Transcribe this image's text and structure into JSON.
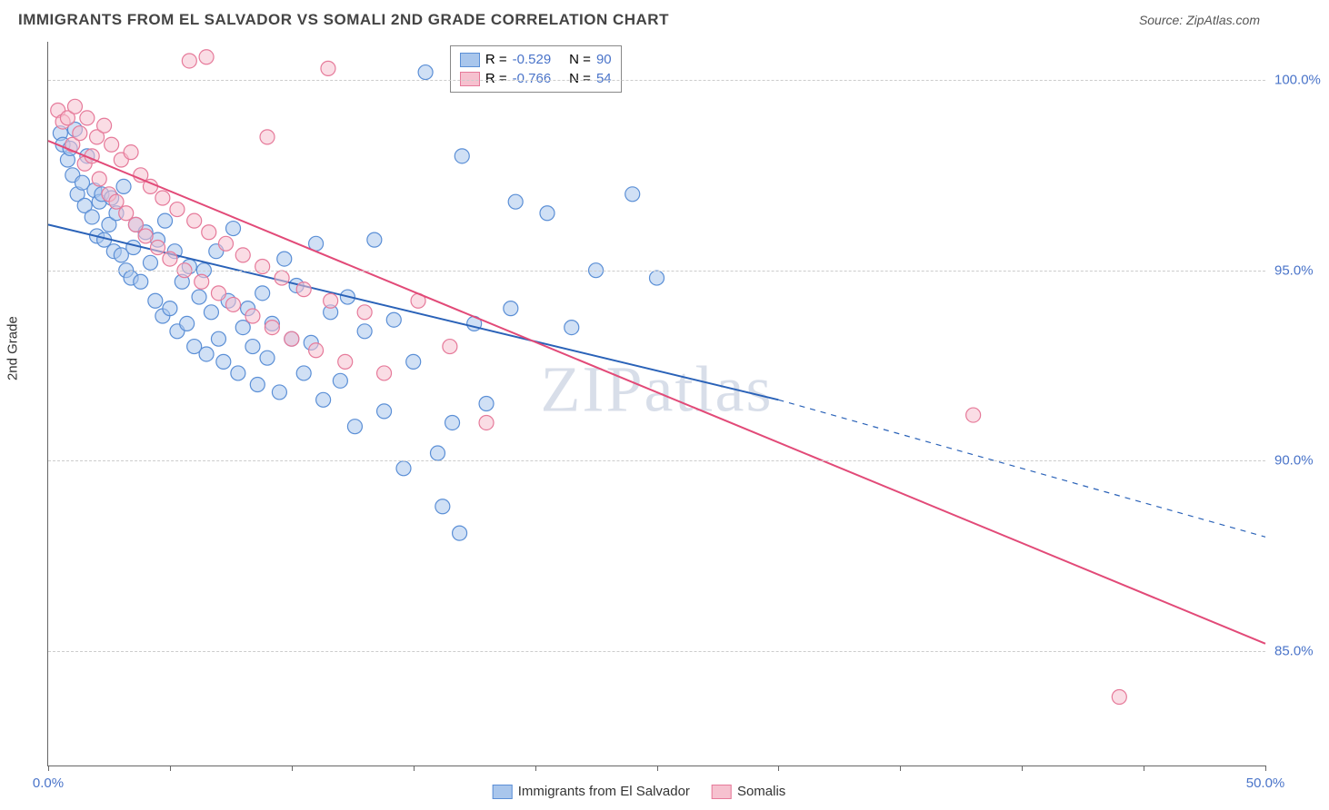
{
  "title": "IMMIGRANTS FROM EL SALVADOR VS SOMALI 2ND GRADE CORRELATION CHART",
  "source_label": "Source: ",
  "source_value": "ZipAtlas.com",
  "y_axis_label": "2nd Grade",
  "watermark": "ZIPatlas",
  "chart": {
    "type": "scatter",
    "background_color": "#ffffff",
    "grid_color": "#cccccc",
    "axis_color": "#666666",
    "xlim": [
      0,
      50
    ],
    "ylim": [
      82,
      101
    ],
    "x_ticks": [
      0,
      5,
      10,
      15,
      20,
      25,
      30,
      35,
      40,
      45,
      50
    ],
    "x_tick_labels": {
      "0": "0.0%",
      "50": "50.0%"
    },
    "y_ticks": [
      85,
      90,
      95,
      100
    ],
    "y_tick_labels": {
      "85": "85.0%",
      "90": "90.0%",
      "95": "95.0%",
      "100": "100.0%"
    },
    "tick_label_color": "#4a74c9",
    "tick_label_fontsize": 15,
    "marker_radius": 8,
    "marker_opacity": 0.55,
    "series": [
      {
        "name": "Immigrants from El Salvador",
        "color_fill": "#a9c6ec",
        "color_stroke": "#5b8fd6",
        "R": "-0.529",
        "N": "90",
        "trend": {
          "x1": 0,
          "y1": 96.2,
          "x2": 30,
          "y2": 91.6,
          "solid_until_x": 30,
          "dash_to_x": 50,
          "dash_y2": 88.0,
          "color": "#2a62b8",
          "width": 2
        },
        "points": [
          [
            0.5,
            98.6
          ],
          [
            0.6,
            98.3
          ],
          [
            0.8,
            97.9
          ],
          [
            0.9,
            98.2
          ],
          [
            1.0,
            97.5
          ],
          [
            1.1,
            98.7
          ],
          [
            1.2,
            97.0
          ],
          [
            1.4,
            97.3
          ],
          [
            1.5,
            96.7
          ],
          [
            1.6,
            98.0
          ],
          [
            1.8,
            96.4
          ],
          [
            1.9,
            97.1
          ],
          [
            2.0,
            95.9
          ],
          [
            2.1,
            96.8
          ],
          [
            2.2,
            97.0
          ],
          [
            2.3,
            95.8
          ],
          [
            2.5,
            96.2
          ],
          [
            2.6,
            96.9
          ],
          [
            2.7,
            95.5
          ],
          [
            2.8,
            96.5
          ],
          [
            3.0,
            95.4
          ],
          [
            3.1,
            97.2
          ],
          [
            3.2,
            95.0
          ],
          [
            3.4,
            94.8
          ],
          [
            3.5,
            95.6
          ],
          [
            3.6,
            96.2
          ],
          [
            3.8,
            94.7
          ],
          [
            4.0,
            96.0
          ],
          [
            4.2,
            95.2
          ],
          [
            4.4,
            94.2
          ],
          [
            4.5,
            95.8
          ],
          [
            4.7,
            93.8
          ],
          [
            4.8,
            96.3
          ],
          [
            5.0,
            94.0
          ],
          [
            5.2,
            95.5
          ],
          [
            5.3,
            93.4
          ],
          [
            5.5,
            94.7
          ],
          [
            5.7,
            93.6
          ],
          [
            5.8,
            95.1
          ],
          [
            6.0,
            93.0
          ],
          [
            6.2,
            94.3
          ],
          [
            6.4,
            95.0
          ],
          [
            6.5,
            92.8
          ],
          [
            6.7,
            93.9
          ],
          [
            6.9,
            95.5
          ],
          [
            7.0,
            93.2
          ],
          [
            7.2,
            92.6
          ],
          [
            7.4,
            94.2
          ],
          [
            7.6,
            96.1
          ],
          [
            7.8,
            92.3
          ],
          [
            8.0,
            93.5
          ],
          [
            8.2,
            94.0
          ],
          [
            8.4,
            93.0
          ],
          [
            8.6,
            92.0
          ],
          [
            8.8,
            94.4
          ],
          [
            9.0,
            92.7
          ],
          [
            9.2,
            93.6
          ],
          [
            9.5,
            91.8
          ],
          [
            9.7,
            95.3
          ],
          [
            10.0,
            93.2
          ],
          [
            10.2,
            94.6
          ],
          [
            10.5,
            92.3
          ],
          [
            10.8,
            93.1
          ],
          [
            11.0,
            95.7
          ],
          [
            11.3,
            91.6
          ],
          [
            11.6,
            93.9
          ],
          [
            12.0,
            92.1
          ],
          [
            12.3,
            94.3
          ],
          [
            12.6,
            90.9
          ],
          [
            13.0,
            93.4
          ],
          [
            13.4,
            95.8
          ],
          [
            13.8,
            91.3
          ],
          [
            14.2,
            93.7
          ],
          [
            14.6,
            89.8
          ],
          [
            15.0,
            92.6
          ],
          [
            15.5,
            100.2
          ],
          [
            16.0,
            90.2
          ],
          [
            16.2,
            88.8
          ],
          [
            16.6,
            91.0
          ],
          [
            16.9,
            88.1
          ],
          [
            17.0,
            98.0
          ],
          [
            17.5,
            93.6
          ],
          [
            18.0,
            91.5
          ],
          [
            19.0,
            94.0
          ],
          [
            19.2,
            96.8
          ],
          [
            20.5,
            96.5
          ],
          [
            21.5,
            93.5
          ],
          [
            22.5,
            95.0
          ],
          [
            24.0,
            97.0
          ],
          [
            25.0,
            94.8
          ]
        ]
      },
      {
        "name": "Somalis",
        "color_fill": "#f6c1cf",
        "color_stroke": "#e67a9a",
        "R": "-0.766",
        "N": "54",
        "trend": {
          "x1": 0,
          "y1": 98.4,
          "x2": 50,
          "y2": 85.2,
          "color": "#e24a78",
          "width": 2
        },
        "points": [
          [
            0.4,
            99.2
          ],
          [
            0.6,
            98.9
          ],
          [
            0.8,
            99.0
          ],
          [
            1.0,
            98.3
          ],
          [
            1.1,
            99.3
          ],
          [
            1.3,
            98.6
          ],
          [
            1.5,
            97.8
          ],
          [
            1.6,
            99.0
          ],
          [
            1.8,
            98.0
          ],
          [
            2.0,
            98.5
          ],
          [
            2.1,
            97.4
          ],
          [
            2.3,
            98.8
          ],
          [
            2.5,
            97.0
          ],
          [
            2.6,
            98.3
          ],
          [
            2.8,
            96.8
          ],
          [
            3.0,
            97.9
          ],
          [
            3.2,
            96.5
          ],
          [
            3.4,
            98.1
          ],
          [
            3.6,
            96.2
          ],
          [
            3.8,
            97.5
          ],
          [
            4.0,
            95.9
          ],
          [
            4.2,
            97.2
          ],
          [
            4.5,
            95.6
          ],
          [
            4.7,
            96.9
          ],
          [
            5.0,
            95.3
          ],
          [
            5.3,
            96.6
          ],
          [
            5.6,
            95.0
          ],
          [
            5.8,
            100.5
          ],
          [
            6.0,
            96.3
          ],
          [
            6.3,
            94.7
          ],
          [
            6.6,
            96.0
          ],
          [
            6.5,
            100.6
          ],
          [
            7.0,
            94.4
          ],
          [
            7.3,
            95.7
          ],
          [
            7.6,
            94.1
          ],
          [
            8.0,
            95.4
          ],
          [
            8.4,
            93.8
          ],
          [
            8.8,
            95.1
          ],
          [
            9.0,
            98.5
          ],
          [
            9.2,
            93.5
          ],
          [
            9.6,
            94.8
          ],
          [
            10.0,
            93.2
          ],
          [
            10.5,
            94.5
          ],
          [
            11.0,
            92.9
          ],
          [
            11.5,
            100.3
          ],
          [
            11.6,
            94.2
          ],
          [
            12.2,
            92.6
          ],
          [
            13.0,
            93.9
          ],
          [
            13.8,
            92.3
          ],
          [
            15.2,
            94.2
          ],
          [
            16.5,
            93.0
          ],
          [
            18.0,
            91.0
          ],
          [
            38.0,
            91.2
          ],
          [
            44.0,
            83.8
          ]
        ]
      }
    ]
  },
  "legend_top": {
    "R_label": "R =",
    "N_label": "N ="
  },
  "legend_bottom": [
    {
      "swatch_fill": "#a9c6ec",
      "swatch_stroke": "#5b8fd6",
      "label": "Immigrants from El Salvador"
    },
    {
      "swatch_fill": "#f6c1cf",
      "swatch_stroke": "#e67a9a",
      "label": "Somalis"
    }
  ]
}
